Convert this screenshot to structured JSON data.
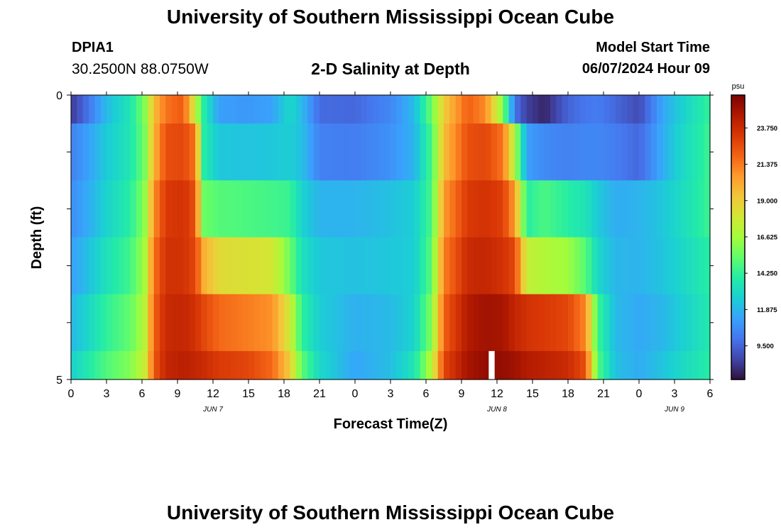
{
  "header": {
    "title": "University of Southern Mississippi Ocean Cube",
    "station_id": "DPIA1",
    "coordinates": "30.2500N  88.0750W",
    "model_start_label": "Model Start Time",
    "model_start_value": "06/07/2024 Hour 09"
  },
  "footer": {
    "title": "University of Southern Mississippi Ocean Cube"
  },
  "colors": {
    "scale": [
      "#30123b",
      "#4145ab",
      "#4675ed",
      "#39a2fc",
      "#1bcfd4",
      "#24eca6",
      "#61fc6c",
      "#a4fc3b",
      "#d1e834",
      "#f3c63a",
      "#fe9b2d",
      "#f36315",
      "#d93806",
      "#b11901",
      "#7a0403"
    ]
  },
  "chart_data": {
    "type": "heatmap",
    "title": "2-D Salinity at Depth",
    "xlabel": "Forecast Time(Z)",
    "ylabel": "Depth (ft)",
    "x_tick_labels": [
      "0",
      "3",
      "6",
      "9",
      "12",
      "15",
      "18",
      "21",
      "0",
      "3",
      "6",
      "9",
      "12",
      "15",
      "18",
      "21",
      "0",
      "3",
      "6"
    ],
    "x_range_hours": [
      0,
      54
    ],
    "date_labels": [
      {
        "label": "JUN 7",
        "hour": 12
      },
      {
        "label": "JUN 8",
        "hour": 36
      },
      {
        "label": "JUN 9",
        "hour": 51
      }
    ],
    "y_tick_labels": [
      "0",
      "5"
    ],
    "ylim": [
      0,
      5
    ],
    "depth_rows": 5,
    "colorbar": {
      "unit": "psu",
      "range": [
        7.3,
        25.9
      ],
      "tick_labels": [
        "23.750",
        "21.375",
        "19.000",
        "16.625",
        "14.250",
        "11.875",
        "9.500"
      ],
      "tick_values": [
        23.75,
        21.375,
        19.0,
        16.625,
        14.25,
        11.875,
        9.5
      ]
    },
    "missing_segments": [
      {
        "hours": [
          35.3,
          35.8
        ],
        "depth_row": 4
      }
    ],
    "keyframes": [
      {
        "hour": 0,
        "values": [
          8.3,
          10.3,
          10.7,
          11.2,
          11.9,
          12.7
        ]
      },
      {
        "hour": 1.5,
        "values": [
          10.0,
          11.3,
          11.6,
          12.2,
          13.0,
          13.8
        ]
      },
      {
        "hour": 3,
        "values": [
          12.0,
          12.5,
          12.8,
          13.4,
          14.2,
          14.9
        ]
      },
      {
        "hour": 5,
        "values": [
          13.6,
          13.6,
          14.0,
          14.6,
          15.3,
          15.9
        ]
      },
      {
        "hour": 6.2,
        "values": [
          15.8,
          15.5,
          16.0,
          16.5,
          17.0,
          17.5
        ]
      },
      {
        "hour": 7,
        "values": [
          19.5,
          19.8,
          20.8,
          21.5,
          22.0,
          22.2
        ]
      },
      {
        "hour": 8,
        "values": [
          21.5,
          22.5,
          23.2,
          23.5,
          23.8,
          24.0
        ]
      },
      {
        "hour": 9.5,
        "values": [
          22.2,
          22.8,
          23.5,
          23.5,
          24.0,
          24.3
        ]
      },
      {
        "hour": 10.5,
        "values": [
          17.5,
          21.5,
          22.5,
          22.8,
          23.5,
          24.0
        ]
      },
      {
        "hour": 11.2,
        "values": [
          14.0,
          14.0,
          15.5,
          20.0,
          22.8,
          23.8
        ]
      },
      {
        "hour": 12.5,
        "values": [
          11.2,
          12.4,
          15.0,
          18.5,
          21.8,
          23.2
        ]
      },
      {
        "hour": 15,
        "values": [
          11.0,
          12.3,
          14.8,
          18.2,
          21.3,
          22.8
        ]
      },
      {
        "hour": 17,
        "values": [
          11.3,
          12.4,
          14.6,
          18.0,
          20.8,
          21.8
        ]
      },
      {
        "hour": 18.5,
        "values": [
          13.0,
          12.6,
          14.4,
          15.5,
          17.8,
          19.0
        ]
      },
      {
        "hour": 19.5,
        "values": [
          12.0,
          12.2,
          12.8,
          13.4,
          14.2,
          15.2
        ]
      },
      {
        "hour": 21,
        "values": [
          9.7,
          10.3,
          11.8,
          12.4,
          12.6,
          13.0
        ]
      },
      {
        "hour": 24,
        "values": [
          9.6,
          10.2,
          11.8,
          12.2,
          11.7,
          11.4
        ]
      },
      {
        "hour": 27,
        "values": [
          10.5,
          10.8,
          12.2,
          12.4,
          12.0,
          12.1
        ]
      },
      {
        "hour": 29,
        "values": [
          12.0,
          11.8,
          12.6,
          12.6,
          12.8,
          13.5
        ]
      },
      {
        "hour": 30.5,
        "values": [
          15.5,
          14.8,
          14.8,
          15.2,
          16.0,
          17.2
        ]
      },
      {
        "hour": 31.5,
        "values": [
          19.0,
          19.5,
          20.5,
          21.2,
          22.0,
          22.8
        ]
      },
      {
        "hour": 33.5,
        "values": [
          22.0,
          22.5,
          23.2,
          23.8,
          24.5,
          24.8
        ]
      },
      {
        "hour": 35,
        "values": [
          21.0,
          22.8,
          23.5,
          24.0,
          25.0,
          25.3
        ]
      },
      {
        "hour": 36.5,
        "values": [
          16.0,
          21.5,
          23.0,
          23.5,
          24.8,
          25.3
        ]
      },
      {
        "hour": 37.5,
        "values": [
          10.0,
          17.0,
          20.5,
          22.8,
          24.0,
          25.0
        ]
      },
      {
        "hour": 38.5,
        "values": [
          8.5,
          11.2,
          14.0,
          17.5,
          23.5,
          24.5
        ]
      },
      {
        "hour": 40,
        "values": [
          7.8,
          10.6,
          14.8,
          17.0,
          23.2,
          24.2
        ]
      },
      {
        "hour": 42,
        "values": [
          9.5,
          10.3,
          14.0,
          16.5,
          22.8,
          23.8
        ]
      },
      {
        "hour": 43.5,
        "values": [
          10.0,
          10.5,
          13.5,
          15.0,
          21.0,
          22.5
        ]
      },
      {
        "hour": 44.5,
        "values": [
          10.2,
          10.5,
          12.5,
          13.0,
          14.5,
          15.0
        ]
      },
      {
        "hour": 46,
        "values": [
          9.6,
          10.2,
          11.6,
          11.9,
          12.0,
          12.2
        ]
      },
      {
        "hour": 48,
        "values": [
          8.8,
          9.6,
          11.8,
          11.8,
          11.5,
          11.6
        ]
      },
      {
        "hour": 50,
        "values": [
          11.4,
          11.6,
          12.4,
          12.3,
          11.9,
          12.3
        ]
      },
      {
        "hour": 51.5,
        "values": [
          12.6,
          12.9,
          13.1,
          12.9,
          12.6,
          13.0
        ]
      },
      {
        "hour": 53,
        "values": [
          13.6,
          13.8,
          13.9,
          13.6,
          13.3,
          13.6
        ]
      },
      {
        "hour": 54,
        "values": [
          14.3,
          14.5,
          14.5,
          14.0,
          13.8,
          14.0
        ]
      }
    ]
  }
}
